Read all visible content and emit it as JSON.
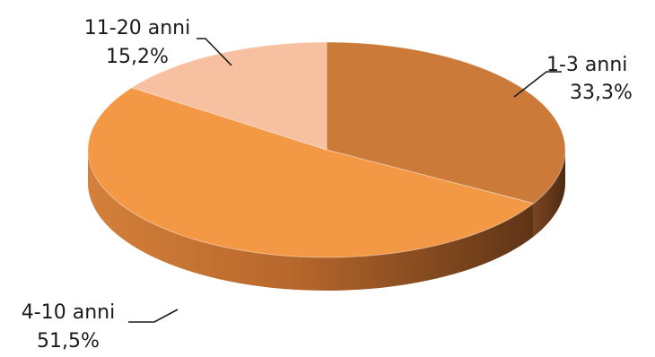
{
  "chart_data": {
    "type": "pie",
    "style": "3d",
    "categories": [
      "1-3 anni",
      "4-10 anni",
      "11-20 anni"
    ],
    "values": [
      33.3,
      51.5,
      15.2
    ],
    "value_labels": [
      "33,3%",
      "51,5%",
      "15,2%"
    ],
    "colors": [
      "#cc7a3a",
      "#f39844",
      "#f7c0a0"
    ],
    "title": "",
    "legend": "none"
  }
}
